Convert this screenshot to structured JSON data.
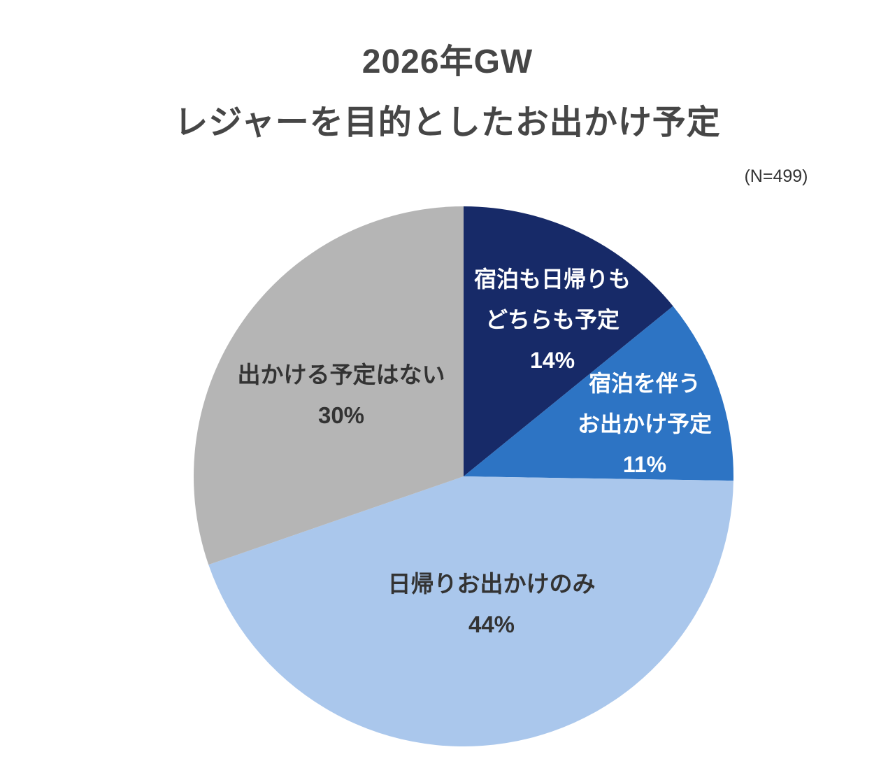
{
  "title": {
    "line1": "2026年GW",
    "line2": "レジャーを目的としたお出かけ予定"
  },
  "sample_note": "(N=499)",
  "chart_data": {
    "type": "pie",
    "title": "2026年GW レジャーを目的としたお出かけ予定",
    "n_label": "(N=499)",
    "start_angle_deg": 0,
    "direction": "clockwise",
    "legend_position": "none",
    "slices": [
      {
        "label_lines": [
          "宿泊も日帰りも",
          "どちらも予定"
        ],
        "value": 14,
        "value_label": "14%",
        "color": "#172a68",
        "text_color": "#ffffff"
      },
      {
        "label_lines": [
          "宿泊を伴う",
          "お出かけ予定"
        ],
        "value": 11,
        "value_label": "11%",
        "color": "#2d74c4",
        "text_color": "#ffffff"
      },
      {
        "label_lines": [
          "日帰りお出かけのみ"
        ],
        "value": 44,
        "value_label": "44%",
        "color": "#aac7ec",
        "text_color": "#333333"
      },
      {
        "label_lines": [
          "出かける予定はない"
        ],
        "value": 30,
        "value_label": "30%",
        "color": "#b5b5b5",
        "text_color": "#333333"
      }
    ]
  }
}
